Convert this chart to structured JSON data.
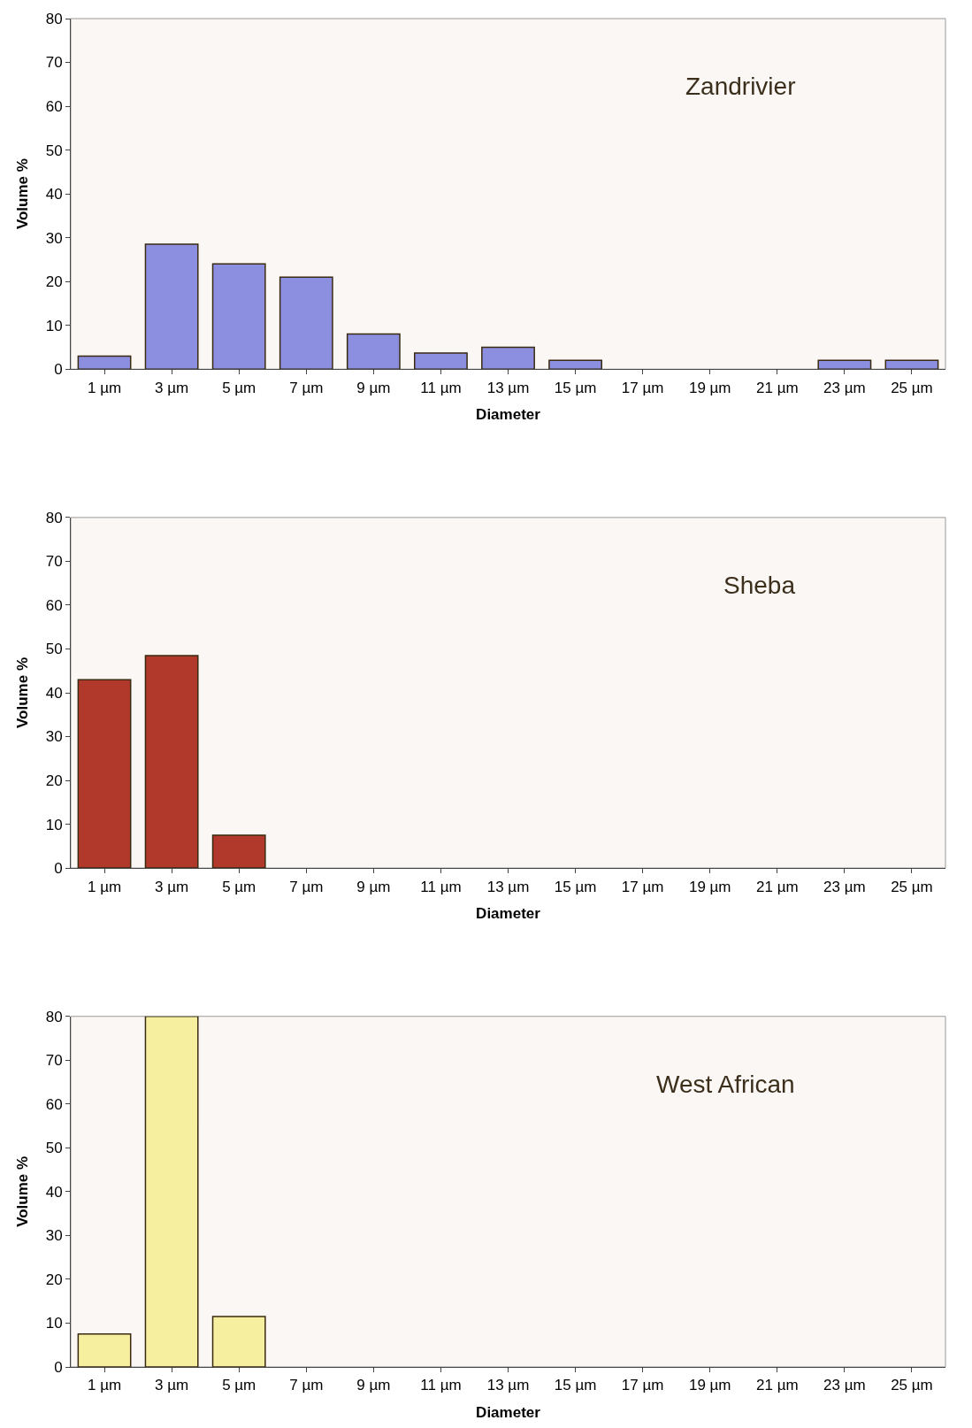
{
  "chart_data": [
    {
      "type": "bar",
      "xlabel": "Diameter",
      "ylabel": "Volume %",
      "annotations": [
        "Zandrivier"
      ],
      "categories": [
        "1 µm",
        "3 µm",
        "5 µm",
        "7 µm",
        "9 µm",
        "11 µm",
        "13 µm",
        "15 µm",
        "17 µm",
        "19 µm",
        "21 µm",
        "23 µm",
        "25 µm"
      ],
      "values": [
        3,
        28.5,
        24,
        21,
        8,
        3.7,
        5,
        2,
        0,
        0,
        0,
        2,
        2
      ],
      "color": "#8c8fe0",
      "ylim": [
        0,
        80
      ],
      "yticks": [
        0,
        10,
        20,
        30,
        40,
        50,
        60,
        70,
        80
      ],
      "grid": false,
      "legend": false
    },
    {
      "type": "bar",
      "xlabel": "Diameter",
      "ylabel": "Volume %",
      "annotations": [
        "Sheba"
      ],
      "categories": [
        "1 µm",
        "3 µm",
        "5 µm",
        "7 µm",
        "9 µm",
        "11 µm",
        "13 µm",
        "15 µm",
        "17 µm",
        "19 µm",
        "21 µm",
        "23 µm",
        "25 µm"
      ],
      "values": [
        43,
        48.5,
        7.5,
        0,
        0,
        0,
        0,
        0,
        0,
        0,
        0,
        0,
        0
      ],
      "color": "#b0392b",
      "ylim": [
        0,
        80
      ],
      "yticks": [
        0,
        10,
        20,
        30,
        40,
        50,
        60,
        70,
        80
      ],
      "grid": false,
      "legend": false
    },
    {
      "type": "bar",
      "xlabel": "Diameter",
      "ylabel": "Volume %",
      "annotations": [
        "West African"
      ],
      "categories": [
        "1 µm",
        "3 µm",
        "5 µm",
        "7 µm",
        "9 µm",
        "11 µm",
        "13 µm",
        "15 µm",
        "17 µm",
        "19 µm",
        "21 µm",
        "23 µm",
        "25 µm"
      ],
      "values": [
        7.5,
        80,
        11.5,
        0,
        0,
        0,
        0,
        0,
        0,
        0,
        0,
        0,
        0
      ],
      "color": "#f7efa0",
      "ylim": [
        0,
        80
      ],
      "yticks": [
        0,
        10,
        20,
        30,
        40,
        50,
        60,
        70,
        80
      ],
      "grid": false,
      "legend": false
    }
  ]
}
